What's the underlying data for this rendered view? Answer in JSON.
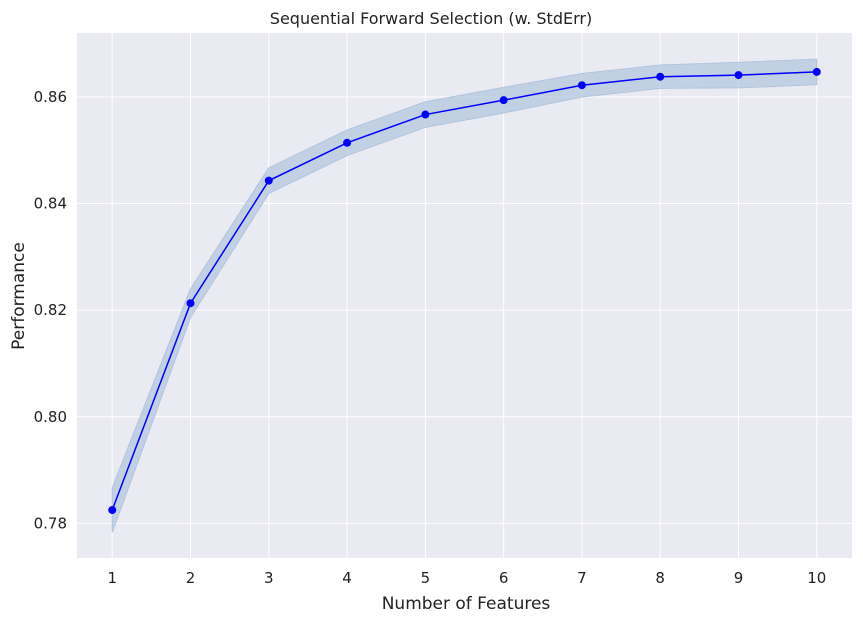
{
  "chart_data": {
    "type": "line",
    "title": "Sequential Forward Selection (w. StdErr)",
    "xlabel": "Number of Features",
    "ylabel": "Performance",
    "x": [
      1,
      2,
      3,
      4,
      5,
      6,
      7,
      8,
      9,
      10
    ],
    "series": [
      {
        "values": [
          0.7825,
          0.8213,
          0.8443,
          0.8514,
          0.8567,
          0.8594,
          0.8622,
          0.8638,
          0.8641,
          0.8647
        ],
        "stderr": [
          0.0042,
          0.0027,
          0.0024,
          0.0024,
          0.0024,
          0.0024,
          0.0022,
          0.0022,
          0.0024,
          0.0024
        ],
        "color": "#0000ff",
        "band_color": "#b0c4de",
        "marker": "circle"
      }
    ],
    "xlim": [
      0.55,
      10.45
    ],
    "ylim": [
      0.7735,
      0.872
    ],
    "xticks": [
      "1",
      "2",
      "3",
      "4",
      "5",
      "6",
      "7",
      "8",
      "9",
      "10"
    ],
    "yticks": [
      "0.78",
      "0.80",
      "0.82",
      "0.84",
      "0.86"
    ],
    "grid": true,
    "background": "#eaeaf2",
    "gridcolor": "#ffffff"
  }
}
